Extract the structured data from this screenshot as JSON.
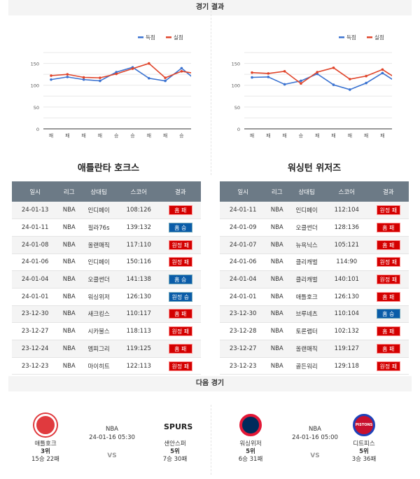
{
  "header": {
    "title": "경기 결과",
    "next_title": "다음 경기"
  },
  "legend": {
    "scored": "득점",
    "allowed": "실점"
  },
  "colors": {
    "scored": "#3b73d1",
    "allowed": "#e0442a",
    "loss": "#d40000",
    "win": "#0a5ca8",
    "table_header": "#6c7a86"
  },
  "chart_data": [
    {
      "type": "line",
      "yticks": [
        0,
        50,
        100,
        150
      ],
      "ylim": [
        0,
        175
      ],
      "categories": [
        "패",
        "패",
        "패",
        "패",
        "승",
        "승",
        "패",
        "패",
        "승",
        "패"
      ],
      "series": [
        {
          "name": "득점",
          "values": [
            113,
            119,
            113,
            110,
            130,
            141,
            116,
            110,
            139,
            108
          ]
        },
        {
          "name": "실점",
          "values": [
            122,
            125,
            118,
            117,
            126,
            138,
            150,
            117,
            132,
            126
          ]
        }
      ]
    },
    {
      "type": "line",
      "yticks": [
        0,
        50,
        100,
        150
      ],
      "ylim": [
        0,
        175
      ],
      "categories": [
        "패",
        "패",
        "패",
        "승",
        "패",
        "패",
        "패",
        "패",
        "패",
        "패"
      ],
      "series": [
        {
          "name": "득점",
          "values": [
            118,
            119,
            102,
            110,
            126,
            101,
            90,
            105,
            128,
            104
          ]
        },
        {
          "name": "실점",
          "values": [
            129,
            127,
            132,
            104,
            130,
            140,
            114,
            121,
            136,
            112
          ]
        }
      ]
    }
  ],
  "columns": [
    "일시",
    "리그",
    "상대팀",
    "스코어",
    "결과"
  ],
  "teams": [
    {
      "name": "애틀란타 호크스",
      "rows": [
        [
          "24-01-13",
          "NBA",
          "인디페이",
          "108:126",
          "홈 패",
          "loss"
        ],
        [
          "24-01-11",
          "NBA",
          "필라76s",
          "139:132",
          "홈 승",
          "win"
        ],
        [
          "24-01-08",
          "NBA",
          "올랜매직",
          "117:110",
          "원정 패",
          "loss"
        ],
        [
          "24-01-06",
          "NBA",
          "인디페이",
          "150:116",
          "원정 패",
          "loss"
        ],
        [
          "24-01-04",
          "NBA",
          "오클썬더",
          "141:138",
          "홈 승",
          "win"
        ],
        [
          "24-01-01",
          "NBA",
          "워싱위저",
          "126:130",
          "원정 승",
          "win"
        ],
        [
          "23-12-30",
          "NBA",
          "새크킹스",
          "110:117",
          "홈 패",
          "loss"
        ],
        [
          "23-12-27",
          "NBA",
          "시카불스",
          "118:113",
          "원정 패",
          "loss"
        ],
        [
          "23-12-24",
          "NBA",
          "멤피그리",
          "119:125",
          "홈 패",
          "loss"
        ],
        [
          "23-12-23",
          "NBA",
          "마이히트",
          "122:113",
          "원정 패",
          "loss"
        ]
      ]
    },
    {
      "name": "워싱턴 위저즈",
      "rows": [
        [
          "24-01-11",
          "NBA",
          "인디페이",
          "112:104",
          "원정 패",
          "loss"
        ],
        [
          "24-01-09",
          "NBA",
          "오클썬더",
          "128:136",
          "홈 패",
          "loss"
        ],
        [
          "24-01-07",
          "NBA",
          "뉴욕닉스",
          "105:121",
          "홈 패",
          "loss"
        ],
        [
          "24-01-06",
          "NBA",
          "클리캐벌",
          "114:90",
          "원정 패",
          "loss"
        ],
        [
          "24-01-04",
          "NBA",
          "클리캐벌",
          "140:101",
          "원정 패",
          "loss"
        ],
        [
          "24-01-01",
          "NBA",
          "애틀호크",
          "126:130",
          "홈 패",
          "loss"
        ],
        [
          "23-12-30",
          "NBA",
          "브루네츠",
          "110:104",
          "홈 승",
          "win"
        ],
        [
          "23-12-28",
          "NBA",
          "토론랩터",
          "102:132",
          "홈 패",
          "loss"
        ],
        [
          "23-12-27",
          "NBA",
          "올랜매직",
          "119:127",
          "홈 패",
          "loss"
        ],
        [
          "23-12-23",
          "NBA",
          "골든워리",
          "129:118",
          "원정 패",
          "loss"
        ]
      ]
    }
  ],
  "next_games": [
    {
      "league": "NBA",
      "datetime": "24-01-16 05:30",
      "vs": "VS",
      "home": {
        "name": "애틀호크",
        "rank": "3위",
        "record": "15승 22패",
        "logo": "hawks-logo",
        "logo_text": ""
      },
      "away": {
        "name": "샌안스퍼",
        "rank": "5위",
        "record": "7승 30패",
        "logo": "spurs-logo",
        "logo_text": "SPURS"
      }
    },
    {
      "league": "NBA",
      "datetime": "24-01-16 05:00",
      "vs": "VS",
      "home": {
        "name": "워싱위저",
        "rank": "5위",
        "record": "6승 31패",
        "logo": "wizards-logo",
        "logo_text": ""
      },
      "away": {
        "name": "디트피스",
        "rank": "5위",
        "record": "3승 36패",
        "logo": "pistons-logo",
        "logo_text": "PISTONS"
      }
    }
  ]
}
